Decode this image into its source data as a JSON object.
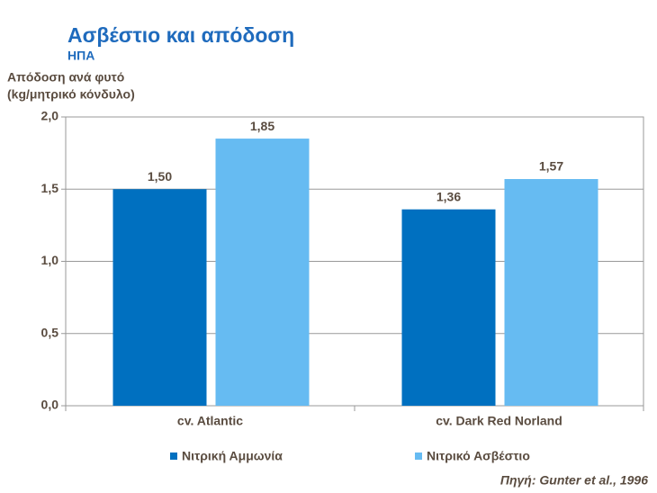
{
  "chart_data": {
    "type": "bar",
    "title": "Ασβέστιο και απόδοση",
    "subtitle": "ΗΠΑ",
    "ylabel": [
      "Απόδοση ανά φυτό",
      "(kg/μητρικό κόνδυλο)"
    ],
    "categories": [
      "cv. Atlantic",
      "cv. Dark Red Norland"
    ],
    "series": [
      {
        "name": "Νιτρική Αμμωνία",
        "color": "#0070c0",
        "values": [
          1.5,
          1.36
        ],
        "value_labels": [
          "1,50",
          "1,36"
        ]
      },
      {
        "name": "Νιτρικό Ασβέστιο",
        "color": "#66bbf2",
        "values": [
          1.85,
          1.57
        ],
        "value_labels": [
          "1,85",
          "1,57"
        ]
      }
    ],
    "ylim": [
      0,
      2
    ],
    "yticks": [
      {
        "value": 0,
        "label": "0,0"
      },
      {
        "value": 0.5,
        "label": "0,5"
      },
      {
        "value": 1,
        "label": "1,0"
      },
      {
        "value": 1.5,
        "label": "1,5"
      },
      {
        "value": 2,
        "label": "2,0"
      }
    ],
    "grid": true,
    "legend": "bottom",
    "source": "Πηγή: Gunter et al., 1996"
  }
}
